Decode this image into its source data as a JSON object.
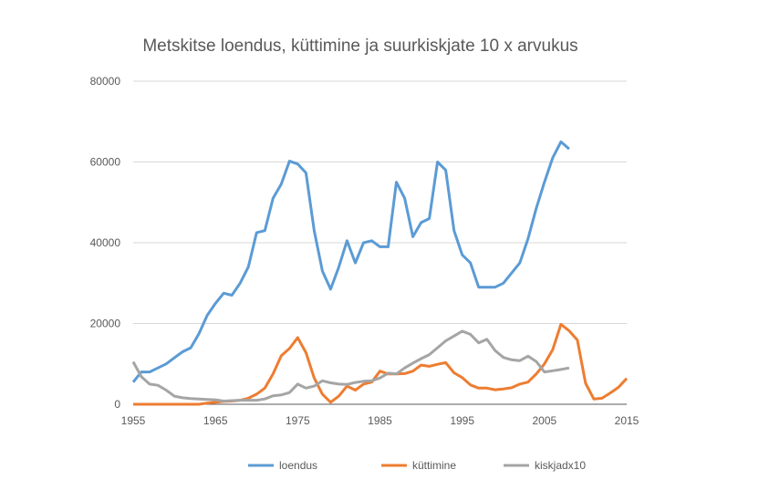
{
  "chart_data": {
    "type": "line",
    "title": "Metskitse loendus, küttimine ja suurkiskjate 10 x arvukus",
    "xlabel": "",
    "ylabel": "",
    "xlim": [
      1955,
      2015
    ],
    "ylim": [
      0,
      80000
    ],
    "x_ticks": [
      1955,
      1965,
      1975,
      1985,
      1995,
      2005,
      2015
    ],
    "y_ticks": [
      0,
      20000,
      40000,
      60000,
      80000
    ],
    "grid": "horizontal",
    "legend": "bottom",
    "series": [
      {
        "name": "loendus",
        "color": "#5b9bd5",
        "start_year": 1955,
        "values": [
          5500,
          8000,
          8000,
          9000,
          10000,
          11500,
          13000,
          14000,
          17500,
          22000,
          25000,
          27500,
          27000,
          30000,
          34000,
          42500,
          43000,
          51000,
          54500,
          60200,
          59500,
          57300,
          43000,
          33000,
          28500,
          34000,
          40500,
          35000,
          40000,
          40500,
          39000,
          39000,
          55000,
          51000,
          41500,
          45000,
          46000,
          60000,
          58000,
          43000,
          37000,
          35000,
          29000,
          29000,
          29000,
          30000,
          32500,
          35000,
          41000,
          48500,
          55000,
          61000,
          65000,
          63200
        ]
      },
      {
        "name": "küttimine",
        "color": "#ed7d31",
        "start_year": 1955,
        "values": [
          0,
          0,
          0,
          0,
          0,
          0,
          0,
          0,
          0,
          300,
          500,
          700,
          800,
          1000,
          1500,
          2500,
          4000,
          7500,
          12000,
          13800,
          16500,
          12800,
          6500,
          2500,
          500,
          2000,
          4500,
          3500,
          5000,
          5500,
          8200,
          7500,
          7500,
          7600,
          8200,
          9700,
          9400,
          9900,
          10300,
          7800,
          6600,
          4800,
          4000,
          4000,
          3600,
          3800,
          4100,
          5000,
          5500,
          7500,
          10000,
          13500,
          19800,
          18200,
          15900,
          5200,
          1300,
          1500,
          2800,
          4200,
          6400
        ]
      },
      {
        "name": "kiskjadx10",
        "color": "#a5a5a5",
        "start_year": 1955,
        "values": [
          10500,
          6800,
          5000,
          4700,
          3500,
          2000,
          1600,
          1400,
          1300,
          1200,
          1100,
          800,
          900,
          1000,
          1000,
          1000,
          1300,
          2100,
          2300,
          2900,
          5000,
          4000,
          4500,
          5800,
          5300,
          5000,
          4900,
          5400,
          5700,
          5800,
          6500,
          7700,
          7500,
          9000,
          10200,
          11300,
          12300,
          14000,
          15700,
          16900,
          18100,
          17300,
          15200,
          16100,
          13300,
          11600,
          11000,
          10800,
          11900,
          10600,
          8000,
          8300,
          8600,
          9000
        ]
      }
    ]
  }
}
